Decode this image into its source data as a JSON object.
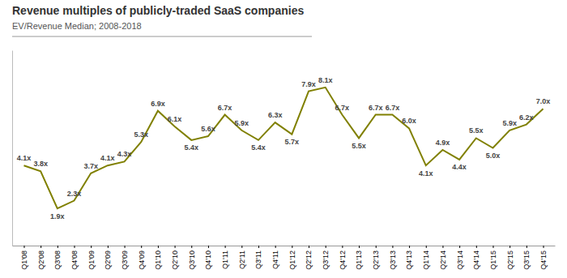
{
  "chart_data": {
    "type": "line",
    "title": "Revenue multiples of publicly-traded SaaS companies",
    "subtitle": "EV/Revenue Median; 2008-2018",
    "categories": [
      "Q1'08",
      "Q2'08",
      "Q3'08",
      "Q4'08",
      "Q1'09",
      "Q2'09",
      "Q3'09",
      "Q4'09",
      "Q1'10",
      "Q2'10",
      "Q3'10",
      "Q4'10",
      "Q1'11",
      "Q2'11",
      "Q3'11",
      "Q4'11",
      "Q1'12",
      "Q2'12",
      "Q3'12",
      "Q4'12",
      "Q1'13",
      "Q2'13",
      "Q3'13",
      "Q4'13",
      "Q1'14",
      "Q2'14",
      "Q3'14",
      "Q4'14",
      "Q1'15",
      "Q2'15",
      "Q3'15",
      "Q4'15"
    ],
    "values": [
      4.1,
      3.8,
      1.9,
      2.3,
      3.7,
      4.1,
      4.3,
      5.3,
      6.9,
      6.1,
      5.4,
      5.6,
      6.7,
      5.9,
      5.4,
      6.3,
      5.7,
      7.9,
      8.1,
      6.7,
      5.5,
      6.7,
      6.7,
      6.0,
      4.1,
      4.9,
      4.4,
      5.5,
      5.0,
      5.9,
      6.2,
      7.0
    ],
    "value_labels": [
      "4.1x",
      "3.8x",
      "1.9x",
      "2.3x",
      "3.7x",
      "4.1x",
      "4.3x",
      "5.3x",
      "6.9x",
      "6.1x",
      "5.4x",
      "5.6x",
      "6.7x",
      "5.9x",
      "5.4x",
      "6.3x",
      "5.7x",
      "7.9x",
      "8.1x",
      "6.7x",
      "5.5x",
      "6.7x",
      "6.7x",
      "6.0x",
      "4.1x",
      "4.9x",
      "4.4x",
      "5.5x",
      "5.0x",
      "5.9x",
      "6.2x",
      "7.0x"
    ],
    "data_labels": true,
    "color": "#808000",
    "ylim": [
      0,
      10
    ],
    "yticks": [],
    "tick_labels": "x",
    "grid": false
  }
}
